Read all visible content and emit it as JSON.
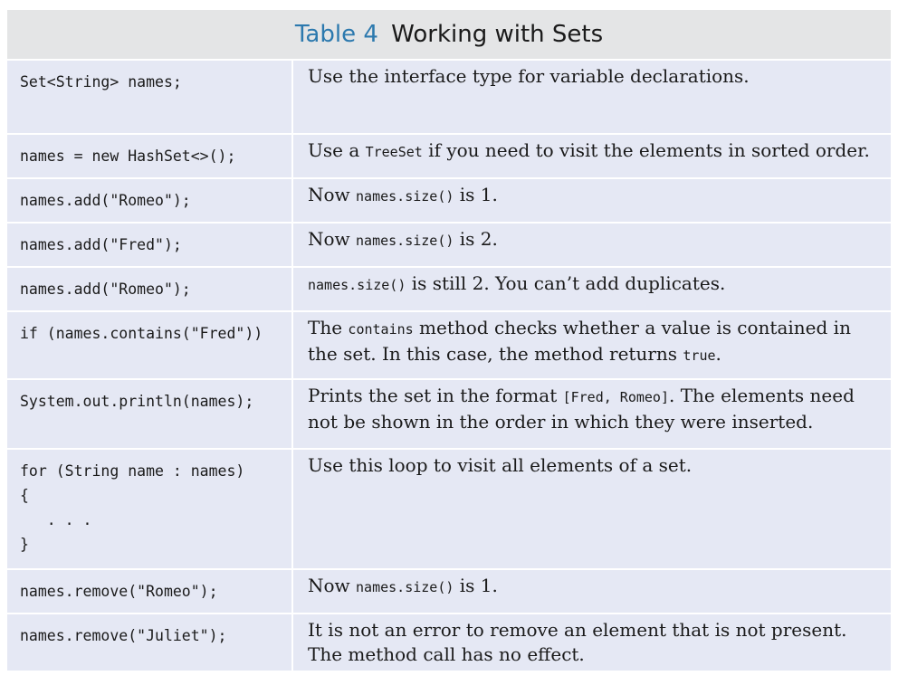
{
  "caption": {
    "number": "Table 4",
    "title": "Working with Sets"
  },
  "rows": [
    {
      "code": "Set<String> names;",
      "desc": [
        {
          "t": "text",
          "v": "Use the interface type for variable declarations."
        }
      ],
      "h": 80
    },
    {
      "code": "names = new HashSet<>();",
      "desc": [
        {
          "t": "text",
          "v": "Use a "
        },
        {
          "t": "code",
          "v": "TreeSet"
        },
        {
          "t": "text",
          "v": " if you need to visit the elements in sorted order."
        }
      ],
      "h": 47
    },
    {
      "code": "names.add(\"Romeo\");",
      "desc": [
        {
          "t": "text",
          "v": "Now "
        },
        {
          "t": "code",
          "v": "names.size()"
        },
        {
          "t": "text",
          "v": " is 1."
        }
      ],
      "h": 47
    },
    {
      "code": "names.add(\"Fred\");",
      "desc": [
        {
          "t": "text",
          "v": "Now "
        },
        {
          "t": "code",
          "v": "names.size()"
        },
        {
          "t": "text",
          "v": " is 2."
        }
      ],
      "h": 47
    },
    {
      "code": "names.add(\"Romeo\");",
      "desc": [
        {
          "t": "code",
          "v": "names.size()"
        },
        {
          "t": "text",
          "v": " is still 2. You can’t add duplicates."
        }
      ],
      "h": 47
    },
    {
      "code": "if (names.contains(\"Fred\"))",
      "desc": [
        {
          "t": "text",
          "v": "The "
        },
        {
          "t": "code",
          "v": "contains"
        },
        {
          "t": "text",
          "v": " method checks whether a value is contained in the set. In this case, the method returns "
        },
        {
          "t": "code",
          "v": "true"
        },
        {
          "t": "text",
          "v": "."
        }
      ],
      "h": 73
    },
    {
      "code": "System.out.println(names);",
      "desc": [
        {
          "t": "text",
          "v": "Prints the set in the format "
        },
        {
          "t": "code",
          "v": "[Fred, Romeo]"
        },
        {
          "t": "text",
          "v": ". The elements need not be shown in the order in which they were inserted."
        }
      ],
      "h": 75
    },
    {
      "code": "for (String name : names)\n{\n   . . .\n}",
      "desc": [
        {
          "t": "text",
          "v": "Use this loop to visit all elements of a set."
        }
      ],
      "h": 131
    },
    {
      "code": "names.remove(\"Romeo\");",
      "desc": [
        {
          "t": "text",
          "v": "Now "
        },
        {
          "t": "code",
          "v": "names.size()"
        },
        {
          "t": "text",
          "v": " is 1."
        }
      ],
      "h": 47
    },
    {
      "code": "names.remove(\"Juliet\");",
      "desc": [
        {
          "t": "text",
          "v": "It is not an error to remove an element that is not present. The method call has no effect."
        }
      ],
      "h": 62
    }
  ]
}
